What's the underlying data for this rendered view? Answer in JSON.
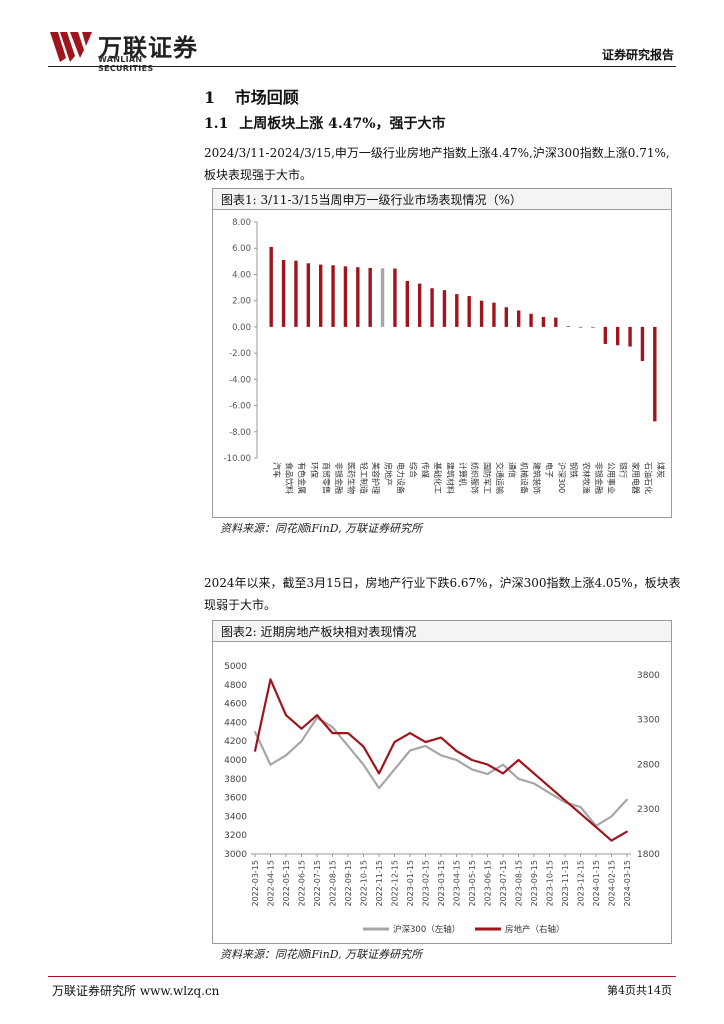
{
  "header": {
    "brand_cn": "万联证券",
    "brand_en": "WANLIAN SECURITIES",
    "right_title": "证券研究报告",
    "accent_color": "#a0141e"
  },
  "section": {
    "h1_num": "1",
    "h1_text": "市场回顾",
    "h2_num": "1.1",
    "h2_text": "上周板块上涨 4.47%，强于大市"
  },
  "para1": [
    "2024/3/11-2024/3/15,申万一级行业房地产指数上涨4.47%,沪深300指数上涨0.71%,",
    "板块表现强于大市。"
  ],
  "fig1": {
    "title": "图表1:  3/11-3/15当周申万一级行业市场表现情况（%）",
    "source": "资料来源：同花顺iFinD, 万联证券研究所",
    "chart_data": {
      "type": "bar",
      "title": "",
      "ylim": [
        -10,
        8
      ],
      "yticks": [
        "8.00",
        "6.00",
        "4.00",
        "2.00",
        "0.00",
        "-2.00",
        "-4.00",
        "-6.00",
        "-8.00",
        "-10.00"
      ],
      "categories": [
        "汽车",
        "食品饮料",
        "有色金属",
        "环保",
        "商贸零售",
        "非银金融",
        "医药生物",
        "轻工制造",
        "美容护理",
        "房地产",
        "电力设备",
        "综合",
        "传媒",
        "基础化工",
        "建筑材料",
        "计算机",
        "纺织服饰",
        "国防军工",
        "交通运输",
        "通信",
        "机械设备",
        "建筑装饰",
        "电子",
        "沪深300",
        "钢铁",
        "农林牧渔",
        "非银金融",
        "公用事业",
        "银行",
        "家用电器",
        "石油石化",
        "煤炭"
      ],
      "values": [
        6.1,
        5.1,
        5.05,
        4.85,
        4.75,
        4.7,
        4.62,
        4.55,
        4.5,
        4.47,
        4.45,
        3.5,
        3.3,
        2.95,
        2.8,
        2.5,
        2.35,
        2.0,
        1.85,
        1.5,
        1.25,
        1.0,
        0.75,
        0.71,
        0.05,
        0.0,
        -0.05,
        -1.3,
        -1.4,
        -1.5,
        -2.6,
        -7.2
      ],
      "highlight_category": "房地产",
      "bar_color": "#a0141e",
      "highlight_color": "#a6a6a6"
    }
  },
  "para2": [
    "2024年以来，截至3月15日，房地产行业下跌6.67%，沪深300指数上涨4.05%，板块表",
    "现弱于大市。"
  ],
  "fig2": {
    "title": "图表2:  近期房地产板块相对表现情况",
    "source": "资料来源：同花顺iFinD, 万联证券研究所",
    "chart_data": {
      "type": "line",
      "title": "",
      "y_left": {
        "ticks": [
          3000,
          3200,
          3400,
          3600,
          3800,
          4000,
          4200,
          4400,
          4600,
          4800,
          5000
        ],
        "lim": [
          3000,
          5000
        ]
      },
      "y_right": {
        "ticks": [
          1800,
          2300,
          2800,
          3300,
          3800
        ],
        "lim": [
          1800,
          3900
        ]
      },
      "x_labels": [
        "2022-03-15",
        "2022-04-15",
        "2022-05-15",
        "2022-06-15",
        "2022-07-15",
        "2022-08-15",
        "2022-09-15",
        "2022-10-15",
        "2022-11-15",
        "2022-12-15",
        "2023-01-15",
        "2023-02-15",
        "2023-03-15",
        "2023-04-15",
        "2023-05-15",
        "2023-06-15",
        "2023-07-15",
        "2023-08-15",
        "2023-09-15",
        "2023-10-15",
        "2023-11-15",
        "2023-12-15",
        "2024-01-15",
        "2024-02-15",
        "2024-03-15"
      ],
      "series": [
        {
          "name": "沪深300（左轴）",
          "axis": "left",
          "color": "#a6a6a6",
          "values": [
            4300,
            3950,
            4050,
            4200,
            4450,
            4350,
            4150,
            3950,
            3700,
            3900,
            4100,
            4150,
            4050,
            4000,
            3900,
            3850,
            3950,
            3800,
            3750,
            3650,
            3550,
            3500,
            3300,
            3400,
            3580
          ]
        },
        {
          "name": "房地产（右轴）",
          "axis": "right",
          "color": "#a0141e",
          "values": [
            2950,
            3750,
            3350,
            3200,
            3350,
            3150,
            3150,
            3000,
            2700,
            3050,
            3150,
            3050,
            3100,
            2950,
            2850,
            2800,
            2700,
            2850,
            2700,
            2550,
            2400,
            2250,
            2100,
            1950,
            2050
          ]
        }
      ]
    }
  },
  "footer": {
    "left": "万联证券研究所 www.wlzq.cn",
    "right": "第4页共14页"
  }
}
